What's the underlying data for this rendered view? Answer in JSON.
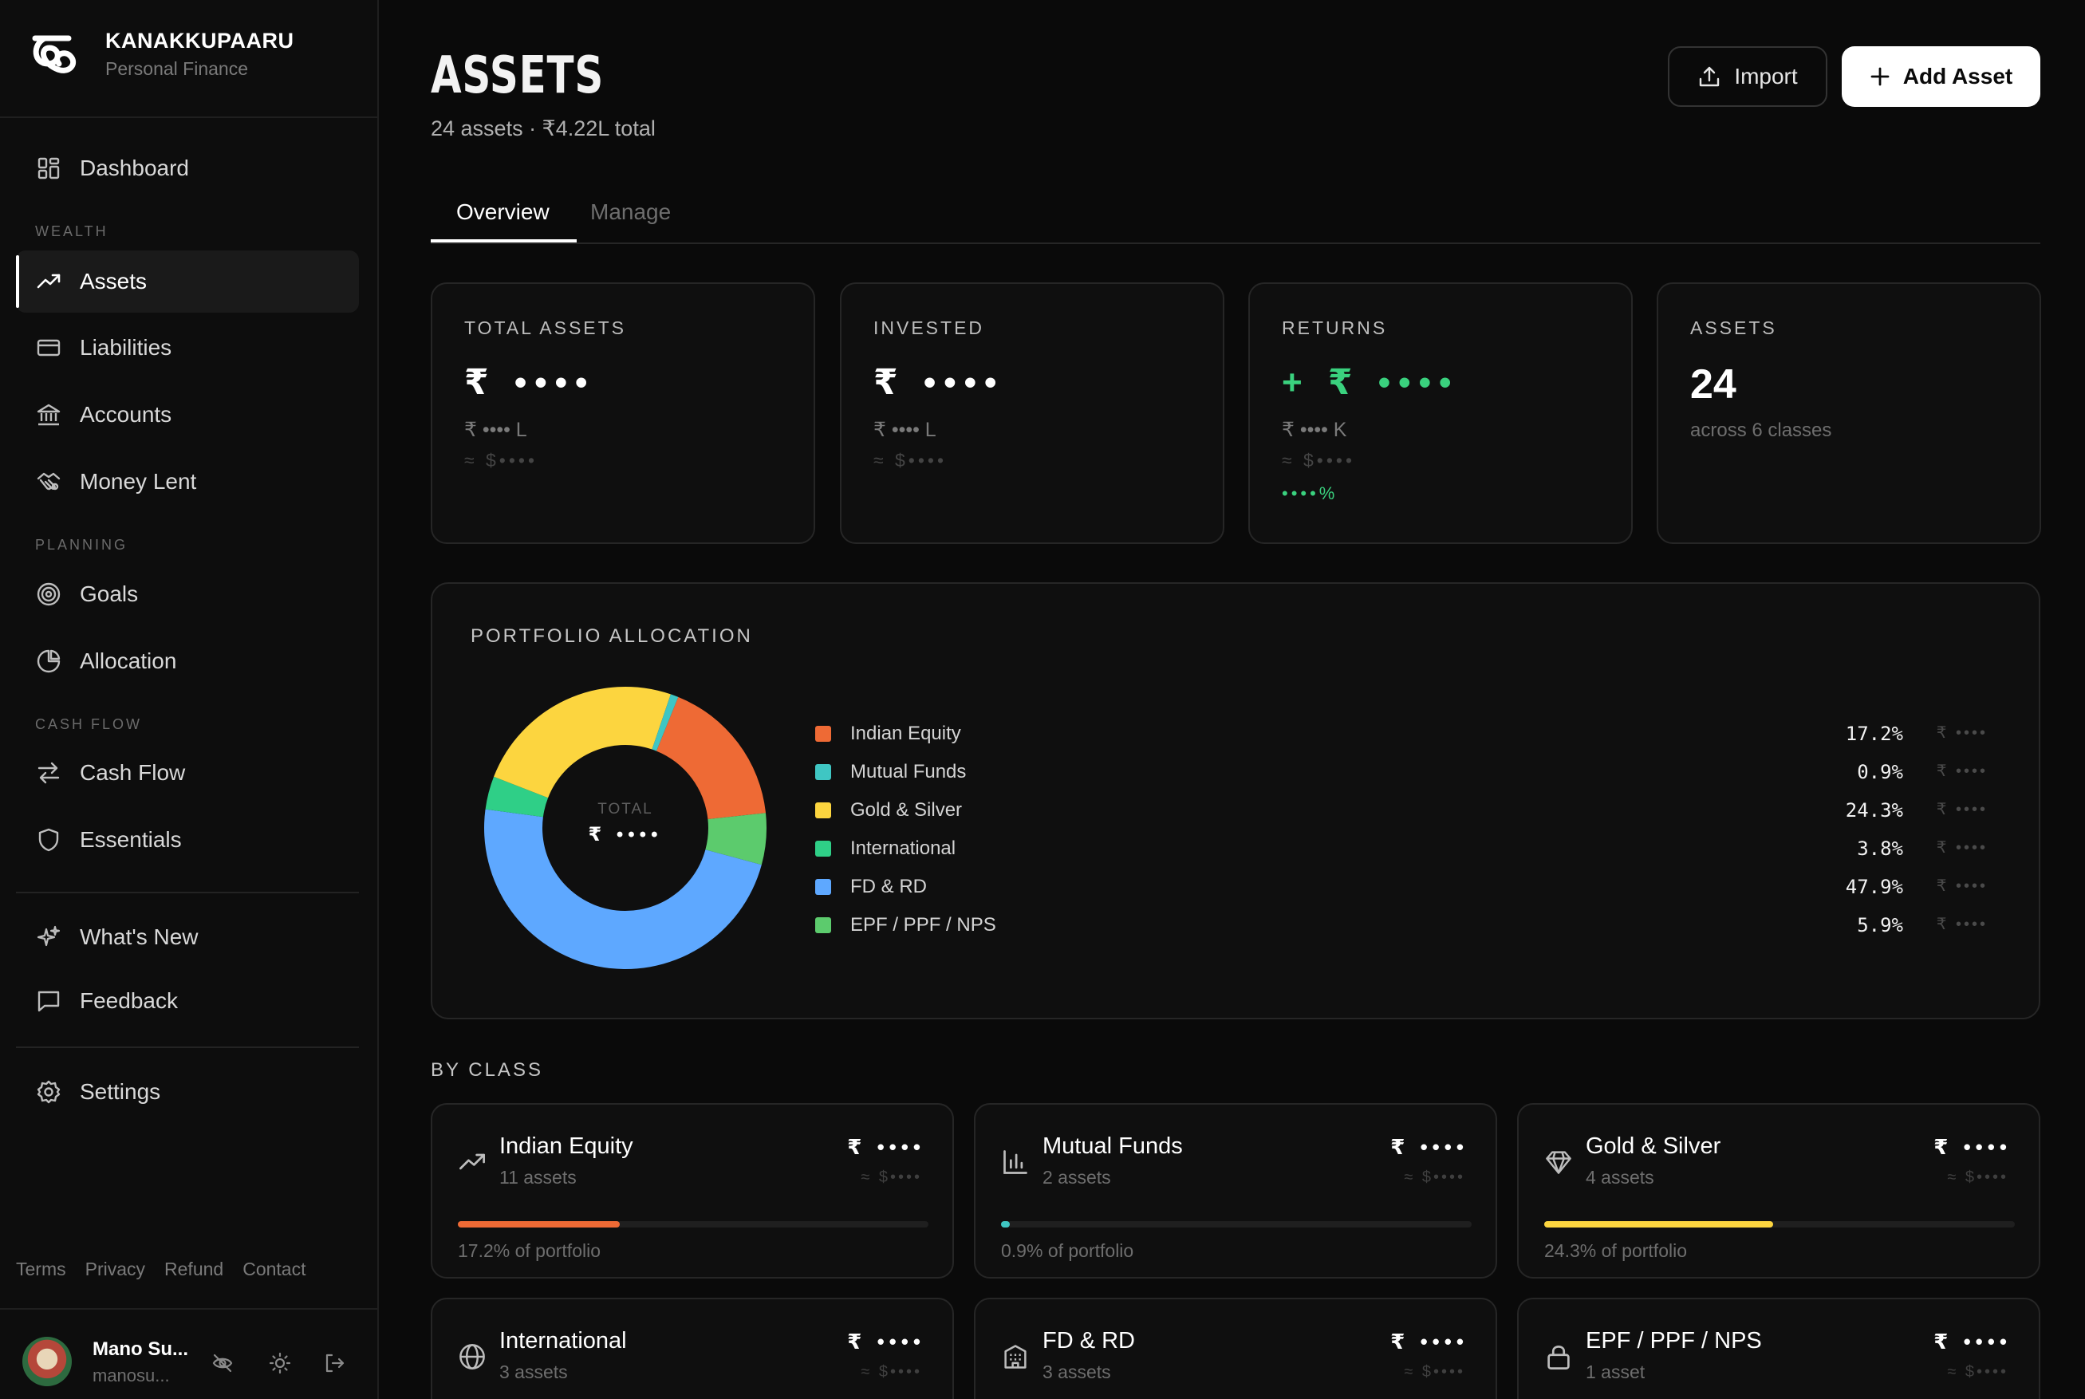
{
  "brand": {
    "name": "KANAKKUPAARU",
    "subtitle": "Personal Finance"
  },
  "sidebar": {
    "dashboard": "Dashboard",
    "sections": {
      "wealth": "WEALTH",
      "planning": "PLANNING",
      "cashflow": "CASH FLOW"
    },
    "items": {
      "assets": "Assets",
      "liabilities": "Liabilities",
      "accounts": "Accounts",
      "money_lent": "Money Lent",
      "goals": "Goals",
      "allocation": "Allocation",
      "cash_flow": "Cash Flow",
      "essentials": "Essentials",
      "whats_new": "What's New",
      "feedback": "Feedback",
      "settings": "Settings"
    },
    "footer": {
      "terms": "Terms",
      "privacy": "Privacy",
      "refund": "Refund",
      "contact": "Contact"
    },
    "user": {
      "name": "Mano Su...",
      "email": "manosu..."
    }
  },
  "header": {
    "title": "ASSETS",
    "subtitle": "24 assets · ₹4.22L total",
    "import_label": "Import",
    "add_label": "Add Asset"
  },
  "tabs": {
    "overview": "Overview",
    "manage": "Manage"
  },
  "stats": {
    "total": {
      "caption": "TOTAL ASSETS",
      "value": "₹ ••••",
      "lakh": "₹ •••• L",
      "usd": "≈ $••••"
    },
    "invested": {
      "caption": "INVESTED",
      "value": "₹ ••••",
      "lakh": "₹ •••• L",
      "usd": "≈ $••••"
    },
    "returns": {
      "caption": "RETURNS",
      "value": "+ ₹ ••••",
      "k": "₹ •••• K",
      "usd": "≈ $••••",
      "pct": "••••%"
    },
    "count": {
      "caption": "ASSETS",
      "value": "24",
      "note": "across 6 classes"
    }
  },
  "allocation": {
    "caption": "PORTFOLIO ALLOCATION",
    "center_label": "TOTAL",
    "center_value": "₹ ••••",
    "masked_value": "₹ ••••"
  },
  "chart_data": {
    "type": "pie",
    "categories": [
      "Indian Equity",
      "Mutual Funds",
      "Gold & Silver",
      "International",
      "FD & RD",
      "EPF / PPF / NPS"
    ],
    "values": [
      17.2,
      0.9,
      24.3,
      3.8,
      47.9,
      5.9
    ],
    "labels": [
      "17.2%",
      "0.9%",
      "24.3%",
      "3.8%",
      "47.9%",
      "5.9%"
    ],
    "colors": [
      "#ee6a35",
      "#3fc6c3",
      "#fcd53f",
      "#2fcf87",
      "#5ea8ff",
      "#5ccb6d"
    ]
  },
  "by_class_label": "BY CLASS",
  "classes": [
    {
      "name": "Indian Equity",
      "count": "11 assets",
      "value": "₹ ••••",
      "usd": "≈ $••••",
      "pct_label": "17.2% of portfolio",
      "pct": 17.2,
      "color": "#ee6a35"
    },
    {
      "name": "Mutual Funds",
      "count": "2 assets",
      "value": "₹ ••••",
      "usd": "≈ $••••",
      "pct_label": "0.9% of portfolio",
      "pct": 0.9,
      "color": "#3fc6c3"
    },
    {
      "name": "Gold & Silver",
      "count": "4 assets",
      "value": "₹ ••••",
      "usd": "≈ $••••",
      "pct_label": "24.3% of portfolio",
      "pct": 24.3,
      "color": "#fcd53f"
    },
    {
      "name": "International",
      "count": "3 assets",
      "value": "₹ ••••",
      "usd": "≈ $••••"
    },
    {
      "name": "FD & RD",
      "count": "3 assets",
      "value": "₹ ••••",
      "usd": "≈ $••••"
    },
    {
      "name": "EPF / PPF / NPS",
      "count": "1 asset",
      "value": "₹ ••••",
      "usd": "≈ $••••"
    }
  ],
  "icons": {
    "brand": "brand-logo-icon",
    "dashboard": "grid-icon",
    "assets": "trend-up-icon",
    "liabilities": "card-icon",
    "accounts": "bank-icon",
    "money_lent": "handshake-icon",
    "goals": "target-icon",
    "allocation": "pie-icon",
    "cash_flow": "arrows-icon",
    "essentials": "shield-icon",
    "whats_new": "sparkle-icon",
    "feedback": "message-icon",
    "settings": "gear-icon",
    "import": "upload-icon",
    "add": "plus-icon"
  }
}
